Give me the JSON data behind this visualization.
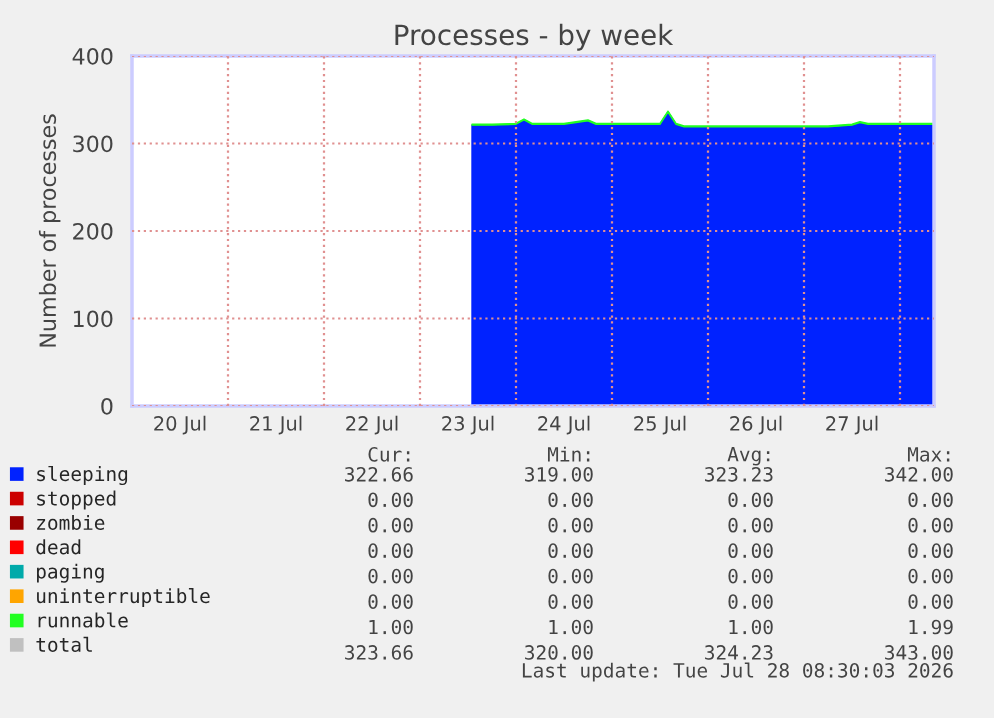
{
  "chart_data": {
    "type": "area",
    "stacked": true,
    "title": "Processes - by week",
    "ylabel": "Number of processes",
    "x": [
      "2026-07-23T13:00",
      "2026-07-23T18:00",
      "2026-07-24T00:00",
      "2026-07-24T02:00",
      "2026-07-24T04:00",
      "2026-07-24T12:00",
      "2026-07-24T18:00",
      "2026-07-24T20:00",
      "2026-07-25T06:00",
      "2026-07-25T12:00",
      "2026-07-25T14:00",
      "2026-07-25T16:00",
      "2026-07-25T18:00",
      "2026-07-26T06:00",
      "2026-07-26T18:00",
      "2026-07-27T06:00",
      "2026-07-27T12:00",
      "2026-07-27T14:00",
      "2026-07-27T16:00",
      "2026-07-28T00:00",
      "2026-07-28T08:30"
    ],
    "series": [
      {
        "name": "sleeping",
        "color": "#0022ff",
        "values": [
          321,
          321,
          322,
          327,
          322,
          322,
          326,
          322,
          322,
          322,
          336,
          322,
          319,
          319,
          319,
          319,
          321,
          324,
          322,
          322,
          322
        ]
      },
      {
        "name": "stopped",
        "color": "#cc0000",
        "values": [
          null,
          null,
          null,
          null,
          null,
          null,
          null,
          null,
          null,
          null,
          null,
          null,
          null,
          null,
          null,
          null,
          null,
          null,
          null,
          null,
          null
        ]
      },
      {
        "name": "zombie",
        "color": "#990000",
        "values": [
          null,
          null,
          null,
          null,
          null,
          null,
          null,
          null,
          null,
          null,
          null,
          null,
          null,
          null,
          null,
          null,
          null,
          null,
          null,
          null,
          null
        ]
      },
      {
        "name": "dead",
        "color": "#ff0000",
        "values": [
          null,
          null,
          null,
          null,
          null,
          null,
          null,
          null,
          null,
          null,
          null,
          null,
          null,
          null,
          null,
          null,
          null,
          null,
          null,
          null,
          null
        ]
      },
      {
        "name": "paging",
        "color": "#00aaaa",
        "values": [
          null,
          null,
          null,
          null,
          null,
          null,
          null,
          null,
          null,
          null,
          null,
          null,
          null,
          null,
          null,
          null,
          null,
          null,
          null,
          null,
          null
        ]
      },
      {
        "name": "uninterruptible",
        "color": "#ffa500",
        "values": [
          null,
          null,
          null,
          null,
          null,
          null,
          null,
          null,
          null,
          null,
          null,
          null,
          null,
          null,
          null,
          null,
          null,
          null,
          null,
          null,
          null
        ]
      },
      {
        "name": "runnable",
        "color": "#22ff22",
        "values": [
          1,
          1,
          1,
          1,
          1,
          1,
          1,
          1,
          1,
          1,
          1,
          1,
          1,
          1,
          1,
          1,
          1,
          1,
          1,
          1,
          1
        ]
      },
      {
        "name": "total",
        "color": "#c0c0c0",
        "values": [
          null,
          null,
          null,
          null,
          null,
          null,
          null,
          null,
          null,
          null,
          null,
          null,
          null,
          null,
          null,
          null,
          null,
          null,
          null,
          null,
          null
        ]
      }
    ],
    "xlim": [
      "2026-07-20T00:00",
      "2026-07-28T08:30"
    ],
    "xticks": [
      {
        "value": "2026-07-20T12:00",
        "label": "20 Jul"
      },
      {
        "value": "2026-07-21T12:00",
        "label": "21 Jul"
      },
      {
        "value": "2026-07-22T12:00",
        "label": "22 Jul"
      },
      {
        "value": "2026-07-23T12:00",
        "label": "23 Jul"
      },
      {
        "value": "2026-07-24T12:00",
        "label": "24 Jul"
      },
      {
        "value": "2026-07-25T12:00",
        "label": "25 Jul"
      },
      {
        "value": "2026-07-26T12:00",
        "label": "26 Jul"
      },
      {
        "value": "2026-07-27T12:00",
        "label": "27 Jul"
      },
      {
        "value": "2026-07-21T00:00",
        "label": null
      },
      {
        "value": "2026-07-22T00:00",
        "label": null
      },
      {
        "value": "2026-07-23T00:00",
        "label": null
      },
      {
        "value": "2026-07-24T00:00",
        "label": null
      },
      {
        "value": "2026-07-25T00:00",
        "label": null
      },
      {
        "value": "2026-07-26T00:00",
        "label": null
      },
      {
        "value": "2026-07-27T00:00",
        "label": null
      },
      {
        "value": "2026-07-28T00:00",
        "label": null
      }
    ],
    "ylim": [
      0,
      400
    ],
    "yticks": [
      0,
      100,
      200,
      300,
      400
    ],
    "grid": true,
    "legend": "bottom",
    "annotations": [
      "Cur:",
      "Min:",
      "Avg:",
      "Max:",
      "322.66",
      "319.00",
      "323.23",
      "342.00",
      "0.00",
      "0.00",
      "0.00",
      "0.00",
      "0.00",
      "0.00",
      "0.00",
      "0.00",
      "0.00",
      "0.00",
      "0.00",
      "0.00",
      "0.00",
      "0.00",
      "0.00",
      "0.00",
      "0.00",
      "0.00",
      "0.00",
      "0.00",
      "1.00",
      "1.00",
      "1.00",
      "1.99",
      "323.66",
      "320.00",
      "324.23",
      "343.00",
      "Last update: Tue Jul 28 08:30:03 2026"
    ]
  }
}
